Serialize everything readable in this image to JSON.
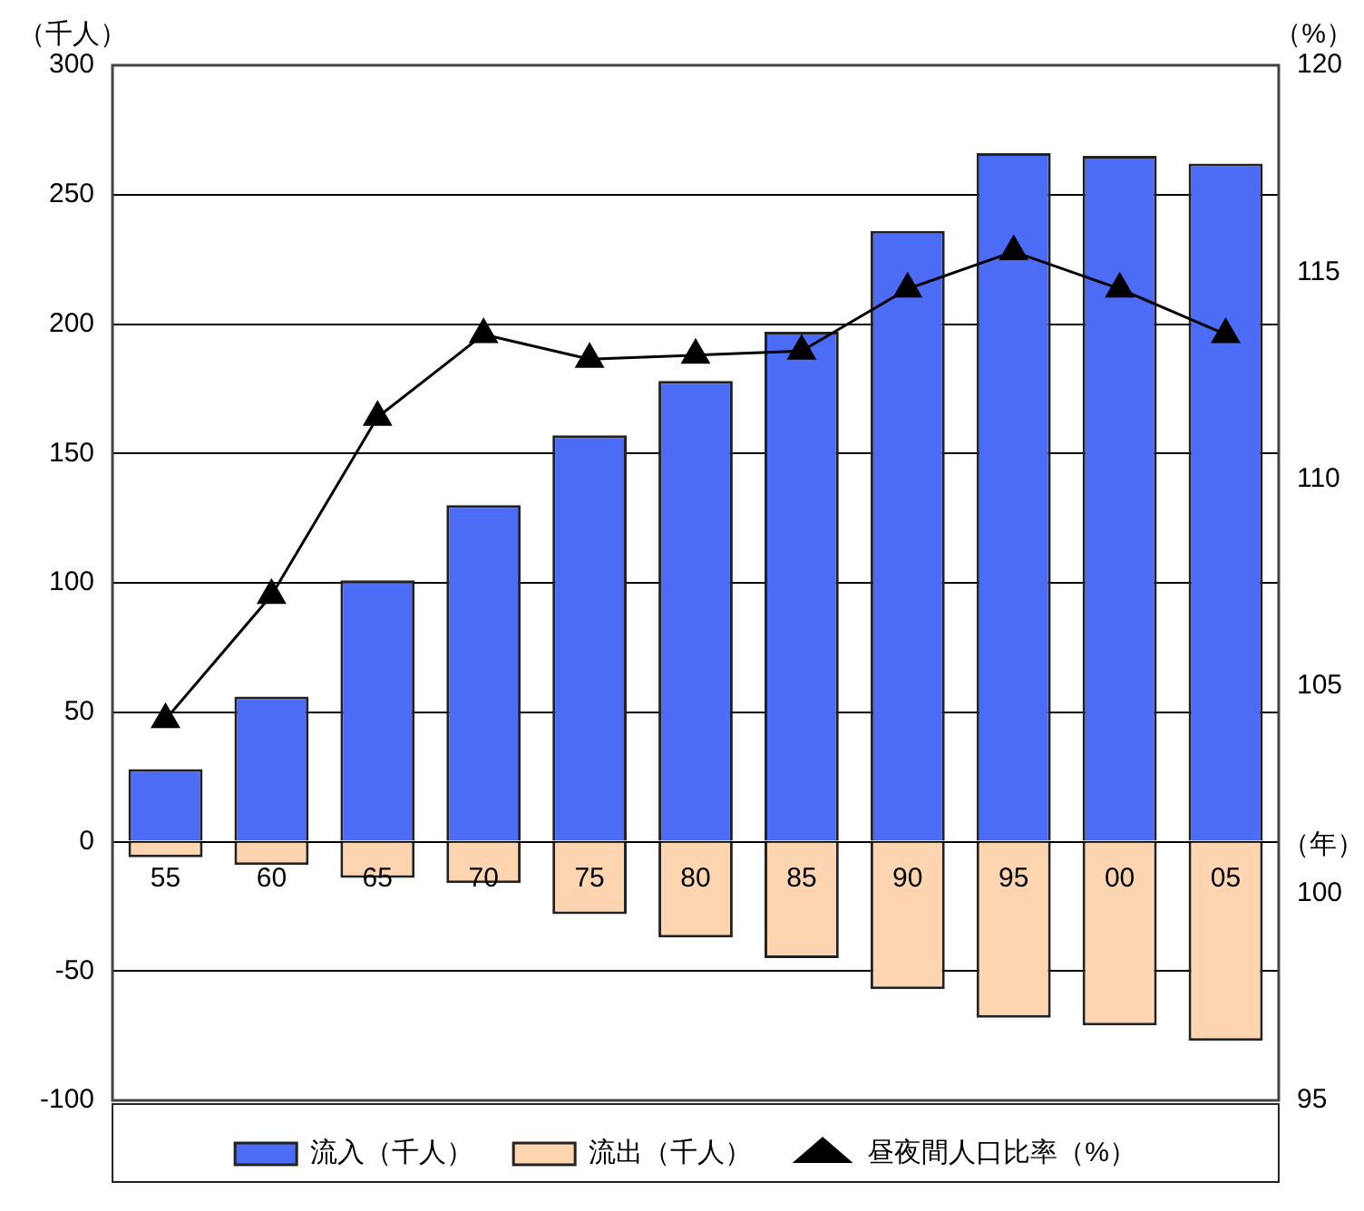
{
  "chart_data": {
    "type": "bar",
    "categories": [
      "55",
      "60",
      "65",
      "70",
      "75",
      "80",
      "85",
      "90",
      "95",
      "00",
      "05"
    ],
    "series": [
      {
        "name": "流入（千人）",
        "color": "#4d6cf5",
        "values": [
          28,
          56,
          101,
          130,
          157,
          178,
          197,
          236,
          266,
          265,
          262
        ]
      },
      {
        "name": "流出（千人）",
        "color": "#fdd5b0",
        "values": [
          -6,
          -9,
          -14,
          -16,
          -28,
          -37,
          -45,
          -57,
          -68,
          -71,
          -77
        ]
      },
      {
        "name": "昼夜間人口比率（%）",
        "type": "line",
        "axis": "y2",
        "color": "#000000",
        "marker": "triangle",
        "values": [
          104.2,
          107.2,
          111.5,
          113.5,
          112.9,
          113,
          113.1,
          114.6,
          115.5,
          114.6,
          113.5
        ]
      }
    ],
    "stacked": true,
    "ylabel": "（千人）",
    "y2label": "（%）",
    "xlabel": "（年）",
    "ylim": [
      -100,
      300
    ],
    "yticks": [
      -100,
      -50,
      0,
      50,
      100,
      150,
      200,
      250,
      300
    ],
    "y2lim": [
      95,
      120
    ],
    "y2ticks": [
      95,
      100,
      105,
      110,
      115,
      120
    ],
    "grid": "y",
    "legend": "bottom"
  }
}
